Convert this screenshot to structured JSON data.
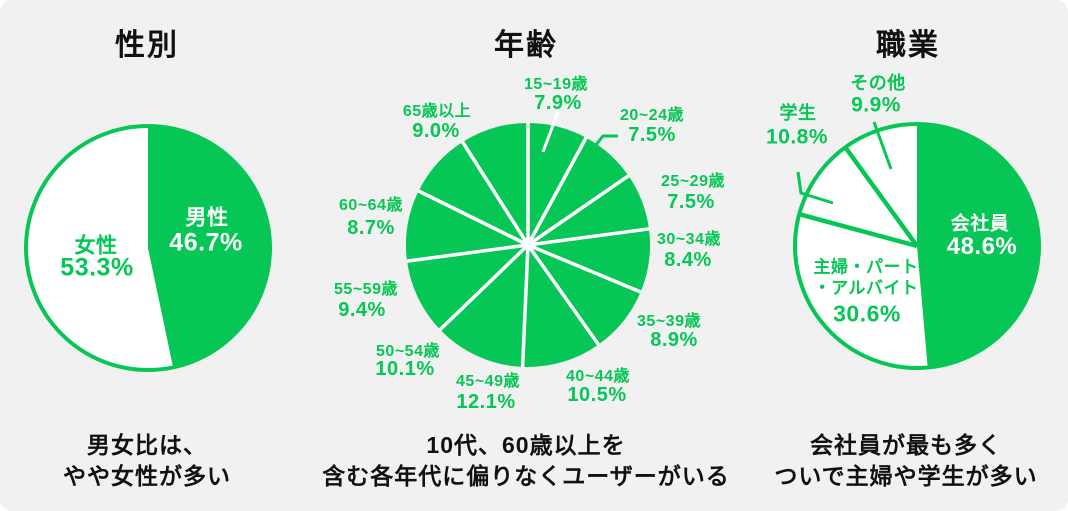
{
  "colors": {
    "brand_green": "#06C755",
    "white": "#FFFFFF",
    "text_dark": "#111111",
    "background": "#F1F1F1"
  },
  "chart_data": [
    {
      "type": "pie",
      "title": "性別",
      "caption": [
        "男女比は、",
        "やや女性が多い"
      ],
      "unit": "%",
      "labels_position": "inside",
      "legend": "none",
      "slices": [
        {
          "label": "男性",
          "value": 46.7,
          "color": "green"
        },
        {
          "label": "女性",
          "value": 53.3,
          "color": "white"
        }
      ]
    },
    {
      "type": "pie",
      "title": "年齢",
      "caption": [
        "10代、60歳以上を",
        "含む各年代に偏りなくユーザーがいる"
      ],
      "unit": "%",
      "labels_position": "outside",
      "legend": "none",
      "slices": [
        {
          "label": "15~19歳",
          "value": 7.9,
          "color": "green"
        },
        {
          "label": "20~24歳",
          "value": 7.5,
          "color": "green"
        },
        {
          "label": "25~29歳",
          "value": 7.5,
          "color": "green"
        },
        {
          "label": "30~34歳",
          "value": 8.4,
          "color": "green"
        },
        {
          "label": "35~39歳",
          "value": 8.9,
          "color": "green"
        },
        {
          "label": "40~44歳",
          "value": 10.5,
          "color": "green"
        },
        {
          "label": "45~49歳",
          "value": 12.1,
          "color": "green"
        },
        {
          "label": "50~54歳",
          "value": 10.1,
          "color": "green"
        },
        {
          "label": "55~59歳",
          "value": 9.4,
          "color": "green"
        },
        {
          "label": "60~64歳",
          "value": 8.7,
          "color": "green"
        },
        {
          "label": "65歳以上",
          "value": 9.0,
          "color": "green"
        }
      ]
    },
    {
      "type": "pie",
      "title": "職業",
      "caption": [
        "会社員が最も多く",
        "ついで主婦や学生が多い"
      ],
      "unit": "%",
      "labels_position": "mixed",
      "legend": "none",
      "slices": [
        {
          "label": "会社員",
          "value": 48.6,
          "color": "green"
        },
        {
          "label": "主婦・パート・アルバイト",
          "value": 30.6,
          "color": "white",
          "label_lines": [
            "主婦・パート",
            "・アルバイト",
            "30.6%"
          ]
        },
        {
          "label": "学生",
          "value": 10.8,
          "color": "white"
        },
        {
          "label": "その他",
          "value": 9.9,
          "color": "white"
        }
      ]
    }
  ]
}
